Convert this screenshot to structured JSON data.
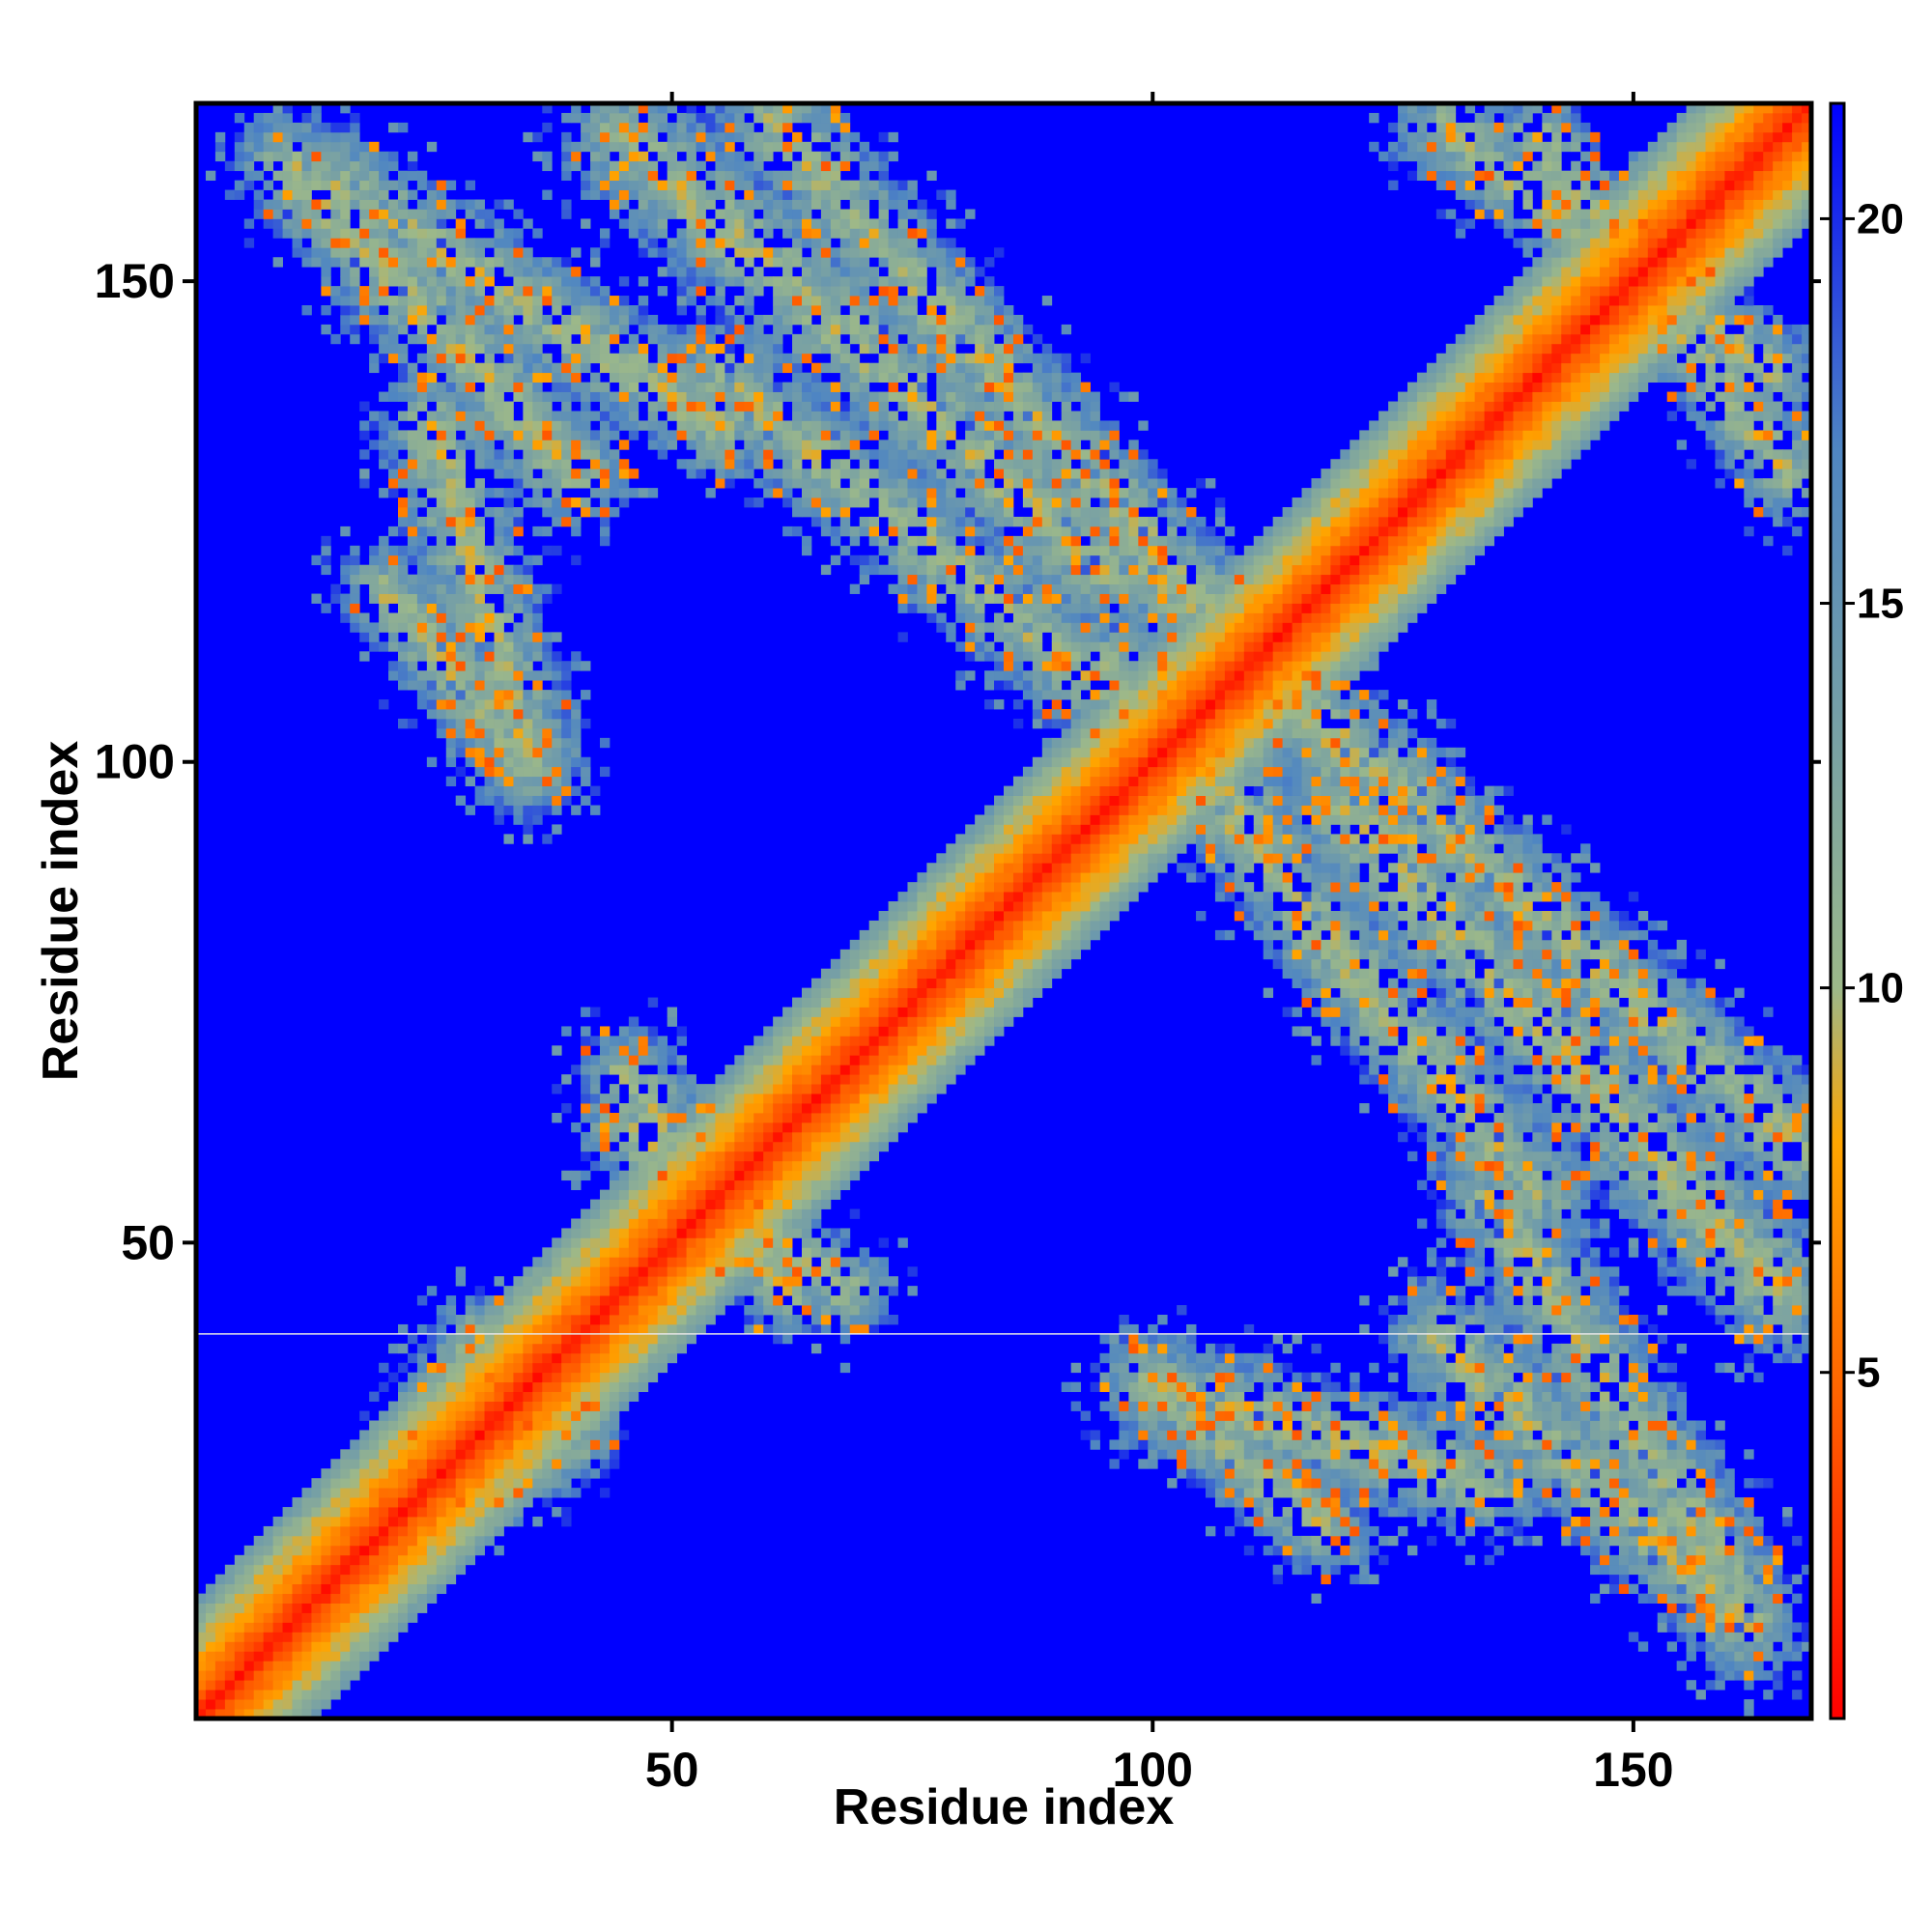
{
  "chart_data": {
    "type": "heatmap",
    "xlabel": "Residue index",
    "ylabel": "Residue index",
    "xlim": [
      1,
      168
    ],
    "ylim": [
      1,
      168
    ],
    "x_ticks": [
      "50",
      "100",
      "150"
    ],
    "y_ticks": [
      "50",
      "100",
      "150"
    ],
    "colorbar": {
      "range": [
        0.5,
        21.5
      ],
      "ticks": [
        "5",
        "10",
        "15",
        "20"
      ],
      "colors": [
        "#ff0000",
        "#ff6a00",
        "#ffa500",
        "#9cb88a",
        "#4f86c2",
        "#0000ff"
      ],
      "stops": [
        0,
        5,
        8,
        10,
        17,
        21.5
      ]
    },
    "grid": false,
    "diagonal_band": {
      "core_halfwidth": 1,
      "orange_halfwidth": 3.5,
      "halo_halfwidth": 9
    },
    "contact_bands": [
      {
        "label": "antiparallel",
        "from": [
          10,
          162
        ],
        "to": [
          40,
          130
        ],
        "halfwidth": 6
      },
      {
        "label": "antiparallel",
        "from": [
          55,
          140
        ],
        "to": [
          110,
          95
        ],
        "halfwidth": 6
      },
      {
        "label": "antiparallel",
        "from": [
          100,
          120
        ],
        "to": [
          167,
          60
        ],
        "halfwidth": 6
      },
      {
        "label": "antiparallel",
        "from": [
          140,
          165
        ],
        "to": [
          166,
          130
        ],
        "halfwidth": 5
      },
      {
        "label": "antiparallel",
        "from": [
          120,
          95
        ],
        "to": [
          165,
          45
        ],
        "halfwidth": 7
      },
      {
        "label": "antiparallel",
        "from": [
          100,
          35
        ],
        "to": [
          135,
          25
        ],
        "halfwidth": 6
      },
      {
        "label": "antiparallel",
        "from": [
          135,
          55
        ],
        "to": [
          160,
          15
        ],
        "halfwidth": 6
      },
      {
        "label": "cluster",
        "from": [
          20,
          118
        ],
        "to": [
          35,
          100
        ],
        "halfwidth": 5
      },
      {
        "label": "cluster",
        "from": [
          45,
          68
        ],
        "to": [
          62,
          45
        ],
        "halfwidth": 5
      },
      {
        "label": "cluster",
        "from": [
          30,
          40
        ],
        "to": [
          25,
          30
        ],
        "halfwidth": 5
      }
    ],
    "horizontal_line_y": 40.5
  }
}
